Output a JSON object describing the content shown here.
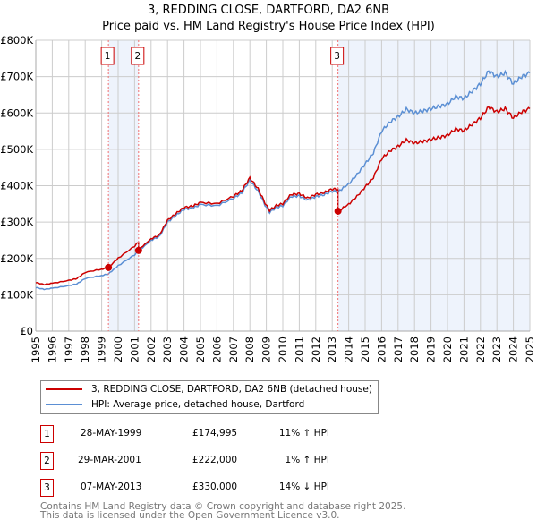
{
  "title": "3, REDDING CLOSE, DARTFORD, DA2 6NB",
  "subtitle": "Price paid vs. HM Land Registry's House Price Index (HPI)",
  "chart_data": {
    "type": "line",
    "title": "3, REDDING CLOSE, DARTFORD, DA2 6NB",
    "subtitle": "Price paid vs. HM Land Registry's House Price Index (HPI)",
    "xlim": [
      1995,
      2025
    ],
    "ylim": [
      0,
      800000
    ],
    "ytick_labels": [
      "£0",
      "£100K",
      "£200K",
      "£300K",
      "£400K",
      "£500K",
      "£600K",
      "£700K",
      "£800K"
    ],
    "ytick_values": [
      0,
      100000,
      200000,
      300000,
      400000,
      500000,
      600000,
      700000,
      800000
    ],
    "xtick_labels": [
      "1995",
      "1996",
      "1997",
      "1998",
      "1999",
      "2000",
      "2001",
      "2002",
      "2003",
      "2004",
      "2005",
      "2006",
      "2007",
      "2008",
      "2009",
      "2010",
      "2011",
      "2012",
      "2013",
      "2014",
      "2015",
      "2016",
      "2017",
      "2018",
      "2019",
      "2020",
      "2021",
      "2022",
      "2023",
      "2024",
      "2025"
    ],
    "hpi_series": {
      "name": "HPI: Average price, detached house, Dartford",
      "color": "#5b8fd4",
      "x": [
        1995,
        1995.5,
        1996,
        1997,
        1997.5,
        1998,
        1999,
        1999.4,
        2000,
        2001,
        2001.24,
        2002,
        2002.5,
        2003,
        2003.5,
        2004,
        2004.5,
        2005,
        2006,
        2007,
        2007.5,
        2008,
        2008.5,
        2009,
        2009.2,
        2009.6,
        2010,
        2010.5,
        2011,
        2011.5,
        2012,
        2012.5,
        2013,
        2013.35,
        2014,
        2014.5,
        2015,
        2015.5,
        2016,
        2016.5,
        2017,
        2017.5,
        2018,
        2018.5,
        2019,
        2019.5,
        2020,
        2020.5,
        2021,
        2021.5,
        2022,
        2022.5,
        2023,
        2023.5,
        2024,
        2024.5,
        2025
      ],
      "y": [
        120000,
        115000,
        118000,
        125000,
        130000,
        145000,
        153000,
        157000,
        180000,
        210000,
        220000,
        250000,
        260000,
        300000,
        318000,
        335000,
        338000,
        348000,
        345000,
        365000,
        380000,
        415000,
        385000,
        340000,
        327000,
        340000,
        345000,
        370000,
        372000,
        360000,
        370000,
        375000,
        385000,
        383000,
        405000,
        430000,
        460000,
        490000,
        550000,
        575000,
        590000,
        610000,
        600000,
        605000,
        612000,
        618000,
        625000,
        645000,
        640000,
        660000,
        680000,
        715000,
        700000,
        710000,
        680000,
        700000,
        710000
      ]
    },
    "property_series": {
      "name": "3, REDDING CLOSE, DARTFORD, DA2 6NB (detached house)",
      "color": "#cc0000"
    },
    "sales": [
      {
        "id": "1",
        "x": 1999.41,
        "date": "28-MAY-1999",
        "price": 174995,
        "price_label": "£174,995",
        "hpi": "11% ↑ HPI"
      },
      {
        "id": "2",
        "x": 2001.24,
        "date": "29-MAR-2001",
        "price": 222000,
        "price_label": "£222,000",
        "hpi": "1% ↑ HPI"
      },
      {
        "id": "3",
        "x": 2013.35,
        "date": "07-MAY-2013",
        "price": 330000,
        "price_label": "£330,000",
        "hpi": "14% ↓ HPI"
      }
    ]
  },
  "legend": {
    "property": "3, REDDING CLOSE, DARTFORD, DA2 6NB (detached house)",
    "hpi": "HPI: Average price, detached house, Dartford"
  },
  "footer": {
    "line1": "Contains HM Land Registry data © Crown copyright and database right 2025.",
    "line2": "This data is licensed under the Open Government Licence v3.0."
  }
}
